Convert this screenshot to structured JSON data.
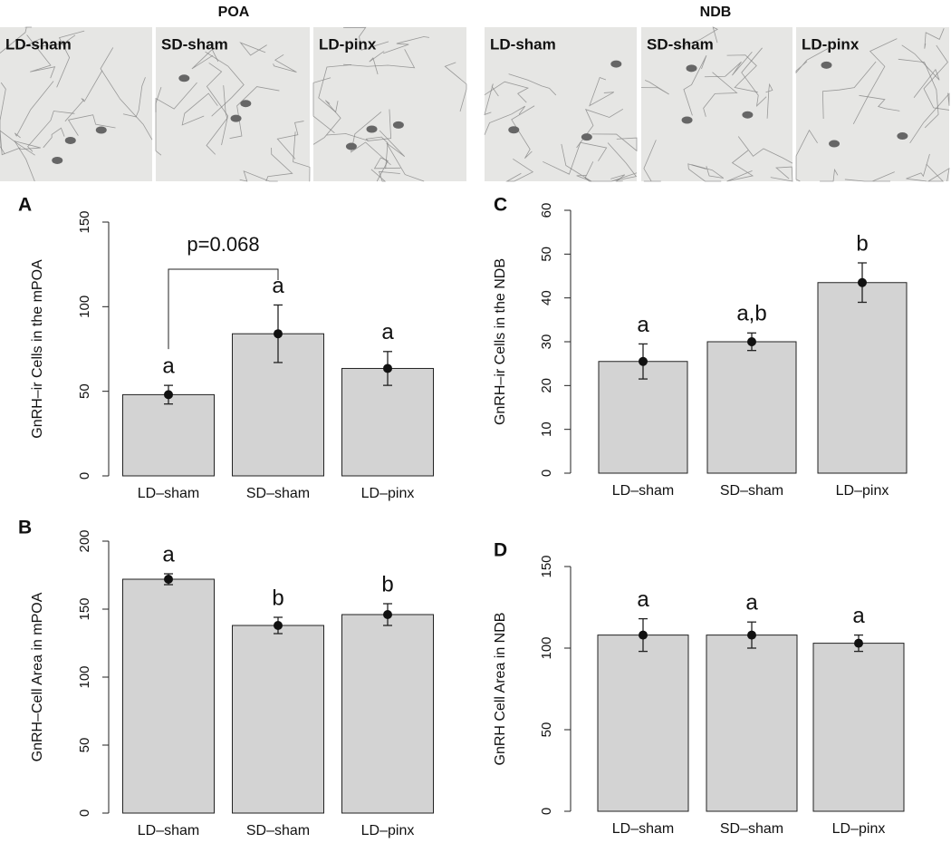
{
  "micrographs": [
    {
      "region": "POA",
      "panels": [
        "LD-sham",
        "SD-sham",
        "LD-pinx"
      ]
    },
    {
      "region": "NDB",
      "panels": [
        "LD-sham",
        "SD-sham",
        "LD-pinx"
      ]
    }
  ],
  "chart_data": [
    {
      "type": "bar",
      "label": "A",
      "y_label": "GnRH–ir Cells in the mPOA",
      "categories": [
        "LD–sham",
        "SD–sham",
        "LD–pinx"
      ],
      "values": [
        48,
        84,
        63.5
      ],
      "errors": [
        5.5,
        17,
        10
      ],
      "annotations": [
        "a",
        "a",
        "a"
      ],
      "bracket_label": "p=0.068",
      "color": "#d3d3d3",
      "ylim": [
        0,
        150
      ],
      "yticks": [
        0,
        50,
        100,
        150
      ]
    },
    {
      "type": "bar",
      "label": "B",
      "y_label": "GnRH–Cell Area in mPOA",
      "categories": [
        "LD–sham",
        "SD–sham",
        "LD–pinx"
      ],
      "values": [
        172,
        138,
        146
      ],
      "errors": [
        4,
        6,
        8
      ],
      "annotations": [
        "a",
        "b",
        "b"
      ],
      "color": "#d3d3d3",
      "ylim": [
        0,
        200
      ],
      "yticks": [
        0,
        50,
        100,
        150,
        200
      ]
    },
    {
      "type": "bar",
      "label": "C",
      "y_label": "GnRH–ir Cells in the NDB",
      "categories": [
        "LD–sham",
        "SD–sham",
        "LD–pinx"
      ],
      "values": [
        25.5,
        30,
        43.5
      ],
      "errors": [
        4,
        2,
        4.5
      ],
      "annotations": [
        "a",
        "a,b",
        "b"
      ],
      "color": "#d3d3d3",
      "ylim": [
        0,
        60
      ],
      "yticks": [
        0,
        10,
        20,
        30,
        40,
        50,
        60
      ]
    },
    {
      "type": "bar",
      "label": "D",
      "y_label": "GnRH Cell Area in NDB",
      "categories": [
        "LD–sham",
        "SD–sham",
        "LD–pinx"
      ],
      "values": [
        108,
        108,
        103
      ],
      "errors": [
        10,
        8,
        5
      ],
      "annotations": [
        "a",
        "a",
        "a"
      ],
      "color": "#d3d3d3",
      "ylim": [
        0,
        150
      ],
      "yticks": [
        0,
        50,
        100,
        150
      ]
    }
  ]
}
